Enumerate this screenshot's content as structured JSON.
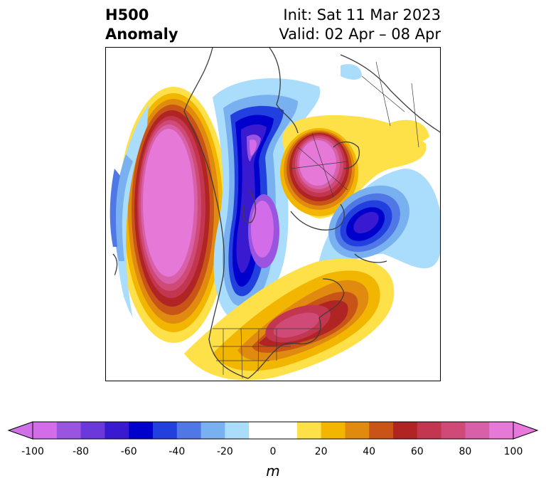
{
  "title": {
    "left_line1": "H500",
    "left_line2": "Anomaly",
    "right_line1": "Init: Sat 11 Mar 2023",
    "right_line2": "Valid: 02 Apr – 08 Apr"
  },
  "colorbar": {
    "unit": "m",
    "min": -100,
    "max": 100,
    "step": 10,
    "tick_labels": [
      "-100",
      "-80",
      "-60",
      "-40",
      "-20",
      "0",
      "20",
      "40",
      "60",
      "80",
      "100"
    ],
    "colors": [
      "#d36ce8",
      "#9a55e0",
      "#6b38dc",
      "#3a1ad0",
      "#0000cc",
      "#2240dd",
      "#4f78e6",
      "#78b0f0",
      "#aadcfc",
      "#ffffff",
      "#ffffff",
      "#fee048",
      "#f2b600",
      "#e08a10",
      "#c85418",
      "#b02424",
      "#c23650",
      "#d04a78",
      "#d860a8",
      "#e678d8"
    ],
    "under_color": "#d070e8",
    "over_color": "#e878dc"
  },
  "map": {
    "type": "contourf",
    "projection": "north-polar-stereographic",
    "field": "500 hPa geopotential height anomaly",
    "features": [
      {
        "kind": "positive-anomaly",
        "region": "northeast Pacific / Gulf of Alaska",
        "peak_m": 100
      },
      {
        "kind": "positive-anomaly",
        "region": "eastern United States",
        "peak_m": 80
      },
      {
        "kind": "positive-anomaly",
        "region": "northern Siberia / Laptev Sea",
        "peak_m": 100
      },
      {
        "kind": "negative-anomaly",
        "region": "central Canada / Hudson Bay",
        "peak_m": -100
      },
      {
        "kind": "negative-anomaly",
        "region": "Scandinavia / northern Europe",
        "peak_m": -70
      }
    ]
  }
}
